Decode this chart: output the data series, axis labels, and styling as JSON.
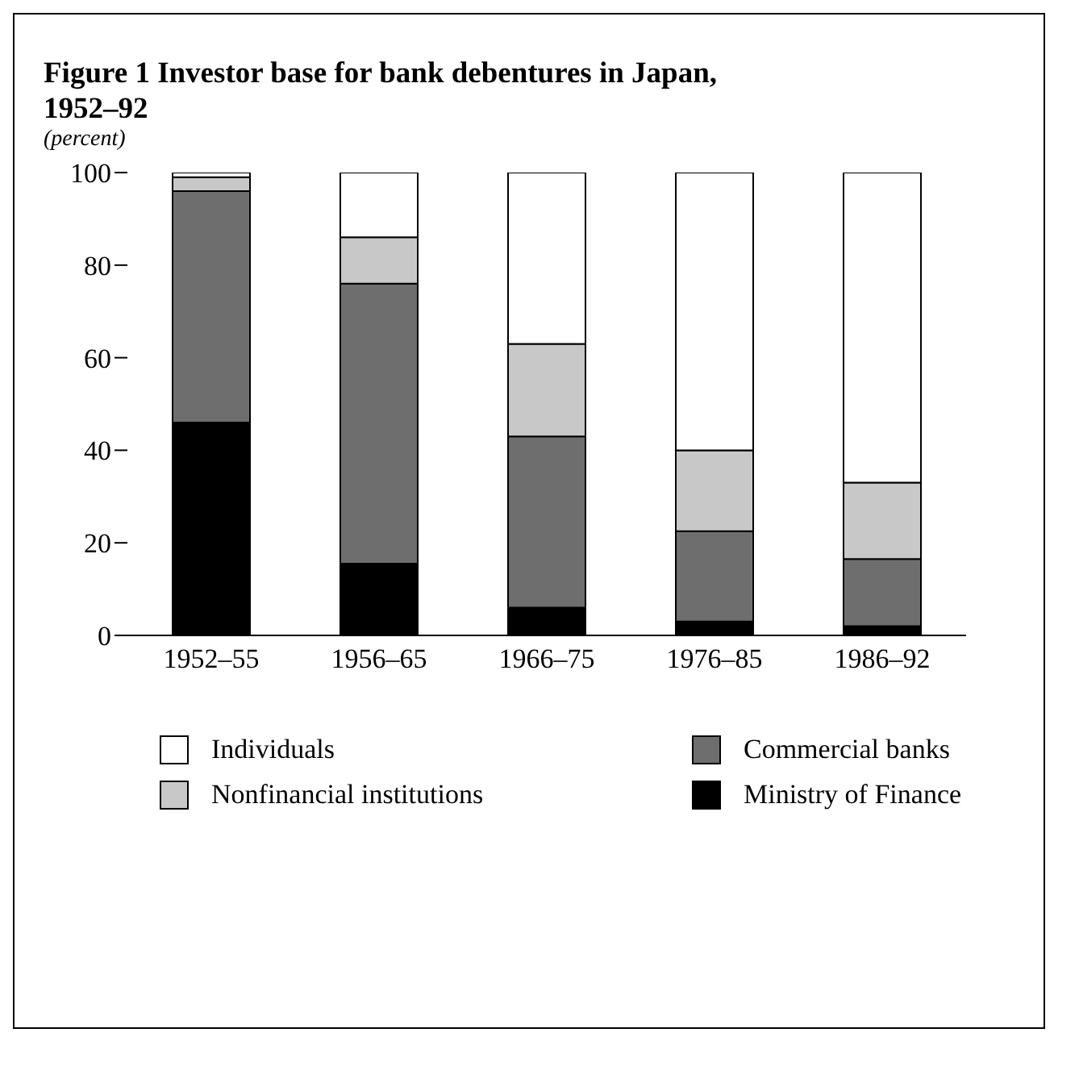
{
  "chart_data": {
    "type": "bar",
    "stacked": true,
    "title": "Figure 1  Investor base for bank debentures in Japan, 1952–92",
    "subtitle": "(percent)",
    "categories": [
      "1952–55",
      "1956–65",
      "1966–75",
      "1976–85",
      "1986–92"
    ],
    "series": [
      {
        "name": "Ministry of Finance",
        "color": "#000000",
        "values": [
          46,
          15.5,
          6,
          3,
          2
        ]
      },
      {
        "name": "Commercial banks",
        "color": "#6e6e6e",
        "values": [
          50,
          60.5,
          37,
          19.5,
          14.5
        ]
      },
      {
        "name": "Nonfinancial institutions",
        "color": "#c8c8c8",
        "values": [
          3,
          10,
          20,
          17.5,
          16.5
        ]
      },
      {
        "name": "Individuals",
        "color": "#ffffff",
        "values": [
          1,
          14,
          37,
          60,
          67
        ]
      }
    ],
    "ylim": [
      0,
      100
    ],
    "yticks": [
      0,
      20,
      40,
      60,
      80,
      100
    ],
    "grid": false,
    "legend": "bottom"
  }
}
